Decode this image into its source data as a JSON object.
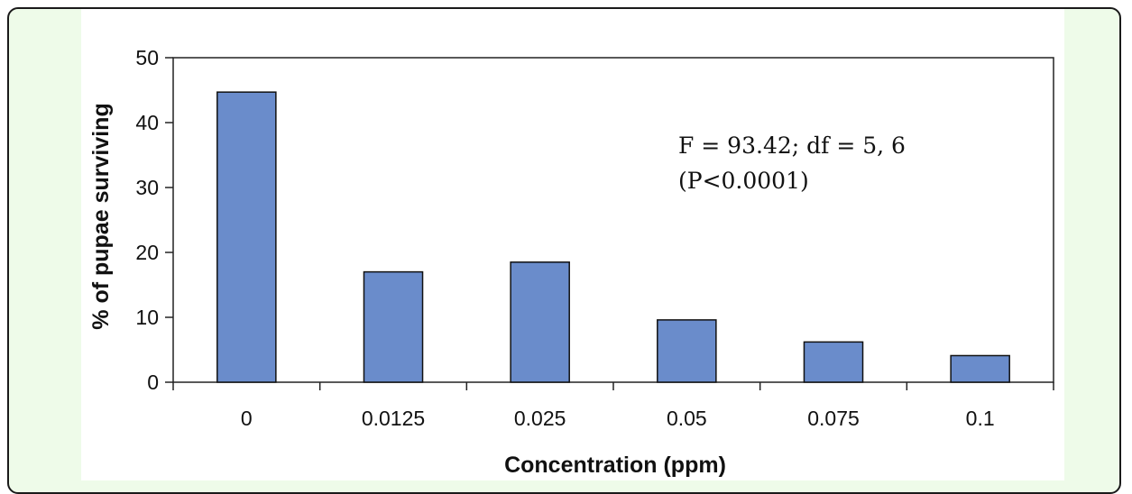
{
  "chart_data": {
    "type": "bar",
    "categories": [
      "0",
      "0.0125",
      "0.025",
      "0.05",
      "0.075",
      "0.1"
    ],
    "values": [
      44.7,
      17.0,
      18.5,
      9.6,
      6.2,
      4.1
    ],
    "title": "",
    "xlabel": "Concentration (ppm)",
    "ylabel": "% of pupae surviving",
    "ylim": [
      0,
      50
    ],
    "yticks": [
      0,
      10,
      20,
      30,
      40,
      50
    ],
    "grid": false,
    "bar_color": "#6a8ccb",
    "annotation": {
      "line1": "F = 93.42; df = 5, 6",
      "line2": "(P<0.0001)"
    }
  }
}
